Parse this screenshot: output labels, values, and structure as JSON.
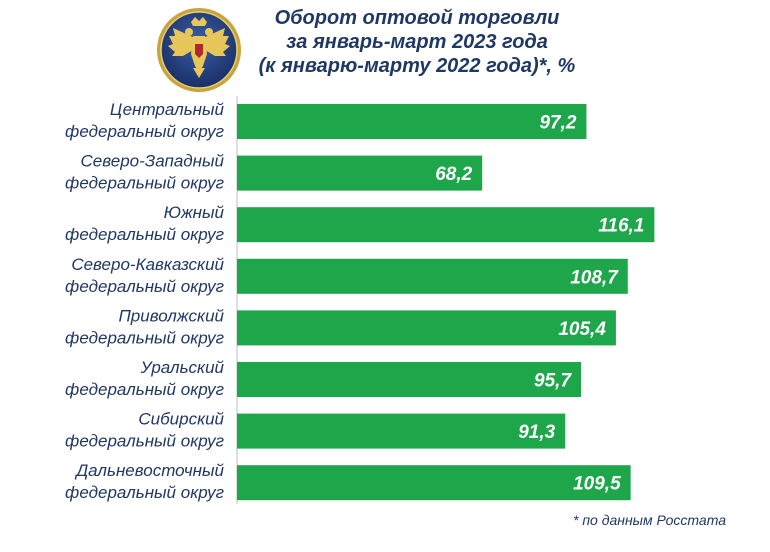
{
  "title": {
    "line1": "Оборот оптовой торговли",
    "line2": "за январь-март 2023 года",
    "line3": "(к январю-марту 2022 года)*, %"
  },
  "footnote": "* по данным Росстата",
  "colors": {
    "bar": "#1ea64b",
    "text": "#1f3864",
    "axis": "#bfbfbf",
    "value_text": "#ffffff"
  },
  "emblem": {
    "icon": "double-headed-eagle-emblem-icon"
  },
  "chart_data": {
    "type": "bar",
    "orientation": "horizontal",
    "title": "Оборот оптовой торговли за январь-март 2023 года (к январю-марту 2022 года)*, %",
    "categories": [
      [
        "Центральный",
        "федеральный округ"
      ],
      [
        "Северо-Западный",
        "федеральный округ"
      ],
      [
        "Южный",
        "федеральный округ"
      ],
      [
        "Северо-Кавказский",
        "федеральный округ"
      ],
      [
        "Приволжский",
        "федеральный округ"
      ],
      [
        "Уральский",
        "федеральный округ"
      ],
      [
        "Сибирский",
        "федеральный округ"
      ],
      [
        "Дальневосточный",
        "федеральный округ"
      ]
    ],
    "values": [
      97.2,
      68.2,
      116.1,
      108.7,
      105.4,
      95.7,
      91.3,
      109.5
    ],
    "value_labels": [
      "97,2",
      "68,2",
      "116,1",
      "108,7",
      "105,4",
      "95,7",
      "91,3",
      "109,5"
    ],
    "xlim": [
      0,
      120
    ],
    "grid": false,
    "legend": "none"
  }
}
